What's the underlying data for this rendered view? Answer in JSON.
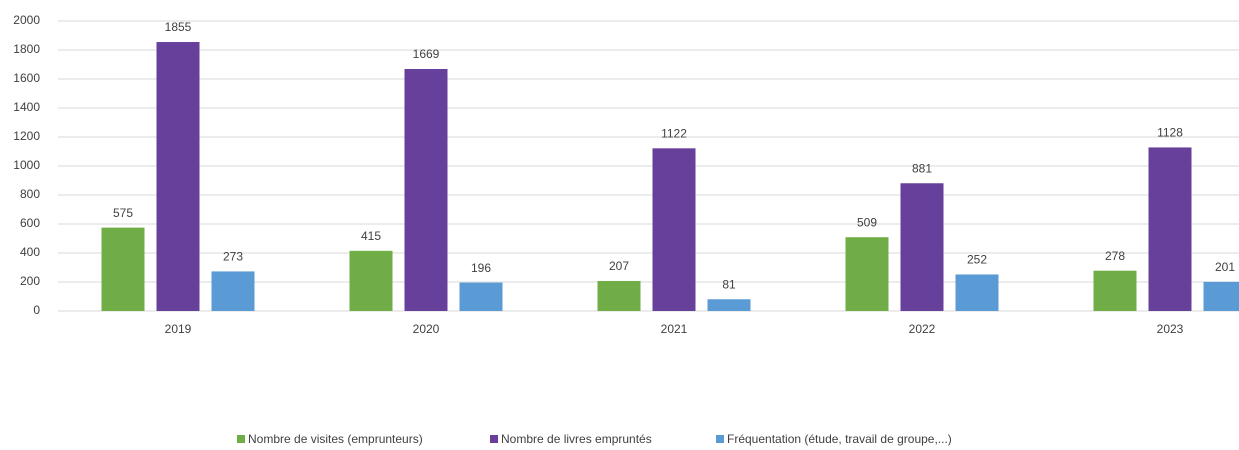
{
  "chart_data": {
    "type": "bar",
    "categories": [
      "2019",
      "2020",
      "2021",
      "2022",
      "2023"
    ],
    "series": [
      {
        "name": "Nombre de visites (emprunteurs)",
        "color": "#70ad47",
        "values": [
          575,
          415,
          207,
          509,
          278
        ]
      },
      {
        "name": "Nombre de livres empruntés",
        "color": "#66409a",
        "values": [
          1855,
          1669,
          1122,
          881,
          1128
        ]
      },
      {
        "name": "Fréquentation (étude, travail de groupe,...)",
        "color": "#5b9bd5",
        "values": [
          273,
          196,
          81,
          252,
          201
        ]
      }
    ],
    "ylim": [
      0,
      2000
    ],
    "yticks": [
      0,
      200,
      400,
      600,
      800,
      1000,
      1200,
      1400,
      1600,
      1800,
      2000
    ],
    "grid": true,
    "legend": "bottom"
  }
}
